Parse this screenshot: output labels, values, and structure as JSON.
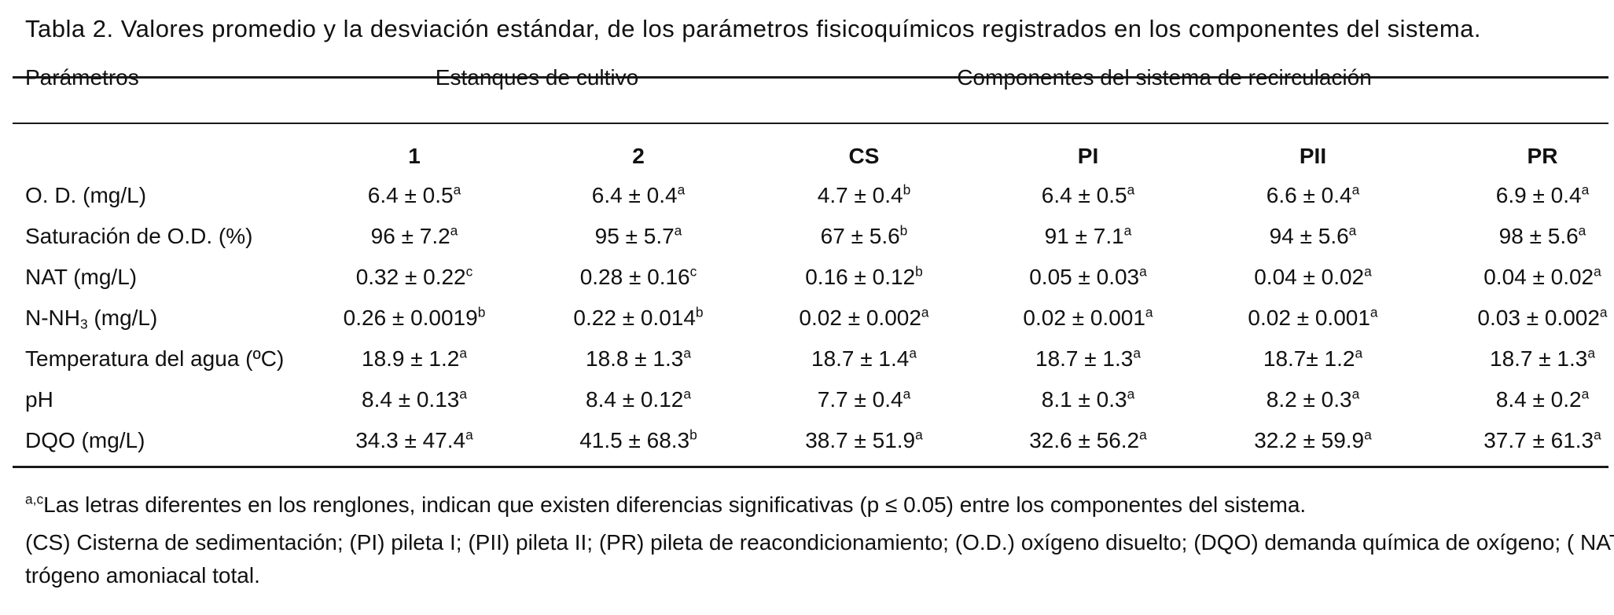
{
  "caption": "Tabla 2. Valores promedio y la desviación estándar, de los parámetros fisicoquímicos registrados en los componentes del sistema.",
  "header": {
    "param_label": "Parámetros",
    "group1": "Estanques de cultivo",
    "group2": "Componentes del sistema de recirculación",
    "columns": [
      "1",
      "2",
      "CS",
      "PI",
      "PII",
      "PR"
    ]
  },
  "rows": [
    {
      "label": "O. D. (mg/L)",
      "cells": [
        {
          "v": "6.4 ± 0.5",
          "s": "a"
        },
        {
          "v": "6.4 ± 0.4",
          "s": "a"
        },
        {
          "v": "4.7 ± 0.4",
          "s": "b"
        },
        {
          "v": "6.4 ± 0.5",
          "s": "a"
        },
        {
          "v": "6.6 ± 0.4",
          "s": "a"
        },
        {
          "v": "6.9 ± 0.4",
          "s": "a"
        }
      ]
    },
    {
      "label": "Saturación de O.D. (%)",
      "cells": [
        {
          "v": "96 ± 7.2",
          "s": "a"
        },
        {
          "v": "95 ± 5.7",
          "s": "a"
        },
        {
          "v": "67 ± 5.6",
          "s": "b"
        },
        {
          "v": "91 ± 7.1",
          "s": "a"
        },
        {
          "v": "94 ± 5.6",
          "s": "a"
        },
        {
          "v": "98 ± 5.6",
          "s": "a"
        }
      ]
    },
    {
      "label": "NAT (mg/L)",
      "cells": [
        {
          "v": "0.32 ± 0.22",
          "s": "c"
        },
        {
          "v": "0.28 ± 0.16",
          "s": "c"
        },
        {
          "v": "0.16 ± 0.12",
          "s": "b"
        },
        {
          "v": "0.05 ± 0.03",
          "s": "a"
        },
        {
          "v": "0.04 ± 0.02",
          "s": "a"
        },
        {
          "v": "0.04 ± 0.02",
          "s": "a"
        }
      ]
    },
    {
      "label_pre": "N-NH",
      "label_sub": "3",
      "label_post": " (mg/L)",
      "cells": [
        {
          "v": "0.26 ± 0.0019",
          "s": "b"
        },
        {
          "v": "0.22 ± 0.014",
          "s": "b"
        },
        {
          "v": "0.02 ± 0.002",
          "s": "a"
        },
        {
          "v": "0.02 ± 0.001",
          "s": "a"
        },
        {
          "v": "0.02 ± 0.001",
          "s": "a"
        },
        {
          "v": "0.03 ± 0.002",
          "s": "a"
        }
      ]
    },
    {
      "label": "Temperatura del agua (ºC)",
      "cells": [
        {
          "v": "18.9 ± 1.2",
          "s": "a"
        },
        {
          "v": "18.8 ± 1.3",
          "s": "a"
        },
        {
          "v": "18.7 ± 1.4",
          "s": "a"
        },
        {
          "v": "18.7 ± 1.3",
          "s": "a"
        },
        {
          "v": "18.7± 1.2",
          "s": "a"
        },
        {
          "v": "18.7 ± 1.3",
          "s": "a"
        }
      ]
    },
    {
      "label": "pH",
      "cells": [
        {
          "v": "8.4 ± 0.13",
          "s": "a"
        },
        {
          "v": "8.4 ± 0.12",
          "s": "a"
        },
        {
          "v": "7.7 ± 0.4",
          "s": "a"
        },
        {
          "v": "8.1 ± 0.3",
          "s": "a"
        },
        {
          "v": "8.2 ± 0.3",
          "s": "a"
        },
        {
          "v": "8.4 ± 0.2",
          "s": "a"
        }
      ]
    },
    {
      "label": "DQO (mg/L)",
      "cells": [
        {
          "v": "34.3 ± 47.4",
          "s": "a"
        },
        {
          "v": "41.5 ± 68.3",
          "s": "b"
        },
        {
          "v": "38.7 ± 51.9",
          "s": "a"
        },
        {
          "v": "32.6 ± 56.2",
          "s": "a"
        },
        {
          "v": "32.2 ± 59.9",
          "s": "a"
        },
        {
          "v": "37.7 ± 61.3",
          "s": "a"
        }
      ]
    }
  ],
  "footnotes": {
    "note1_sup": "a,c",
    "note1": "Las letras diferentes en los renglones, indican que existen diferencias significativas (p ≤ 0.05) entre los componentes del sistema.",
    "note2_line1": "(CS) Cisterna de sedimentación; (PI) pileta I; (PII) pileta II; (PR) pileta de reacondicionamiento; (O.D.) oxígeno disuelto; (DQO) demanda química de oxígeno; ( NAT) ni-",
    "note2_line2": "trógeno amoniacal total."
  }
}
